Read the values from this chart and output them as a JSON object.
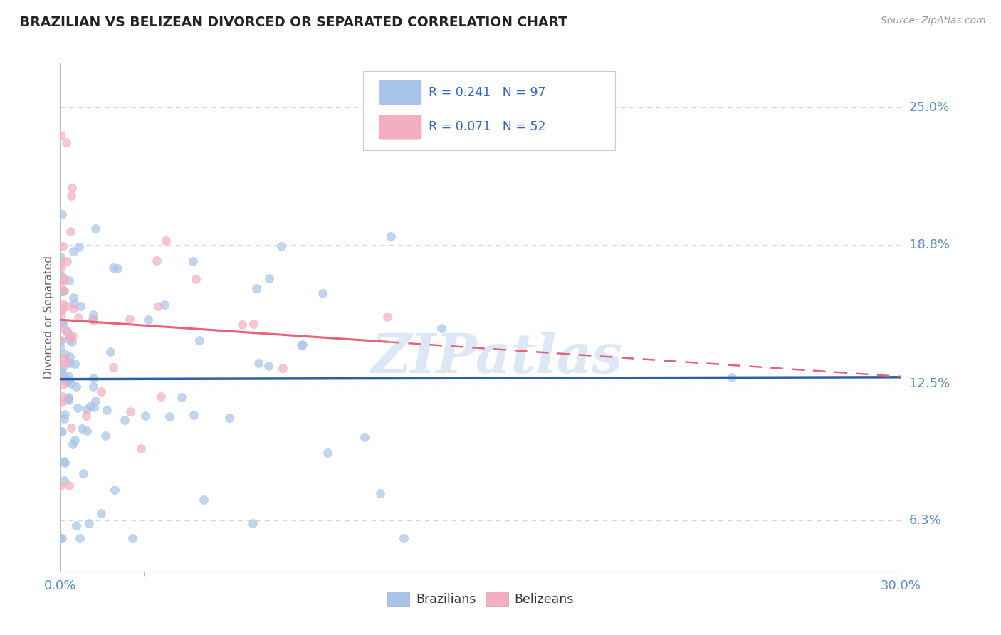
{
  "title": "BRAZILIAN VS BELIZEAN DIVORCED OR SEPARATED CORRELATION CHART",
  "source": "Source: ZipAtlas.com",
  "ylabel": "Divorced or Separated",
  "xlim": [
    0.0,
    0.3
  ],
  "ylim": [
    0.04,
    0.27
  ],
  "yticks": [
    0.063,
    0.125,
    0.188,
    0.25
  ],
  "yticklabels": [
    "6.3%",
    "12.5%",
    "18.8%",
    "25.0%"
  ],
  "blue_R": 0.241,
  "blue_N": 97,
  "pink_R": 0.071,
  "pink_N": 52,
  "blue_color": "#a8c4e8",
  "pink_color": "#f4aec0",
  "blue_line_color": "#2d5fa6",
  "pink_line_color": "#e8607a",
  "grid_color": "#d0d8e8",
  "tick_color": "#5588cc",
  "title_color": "#222222",
  "source_color": "#999999",
  "legend_R_color": "#3366cc",
  "watermark": "ZIPatlas",
  "watermark_color": "#c8d8f0",
  "seed": 42
}
